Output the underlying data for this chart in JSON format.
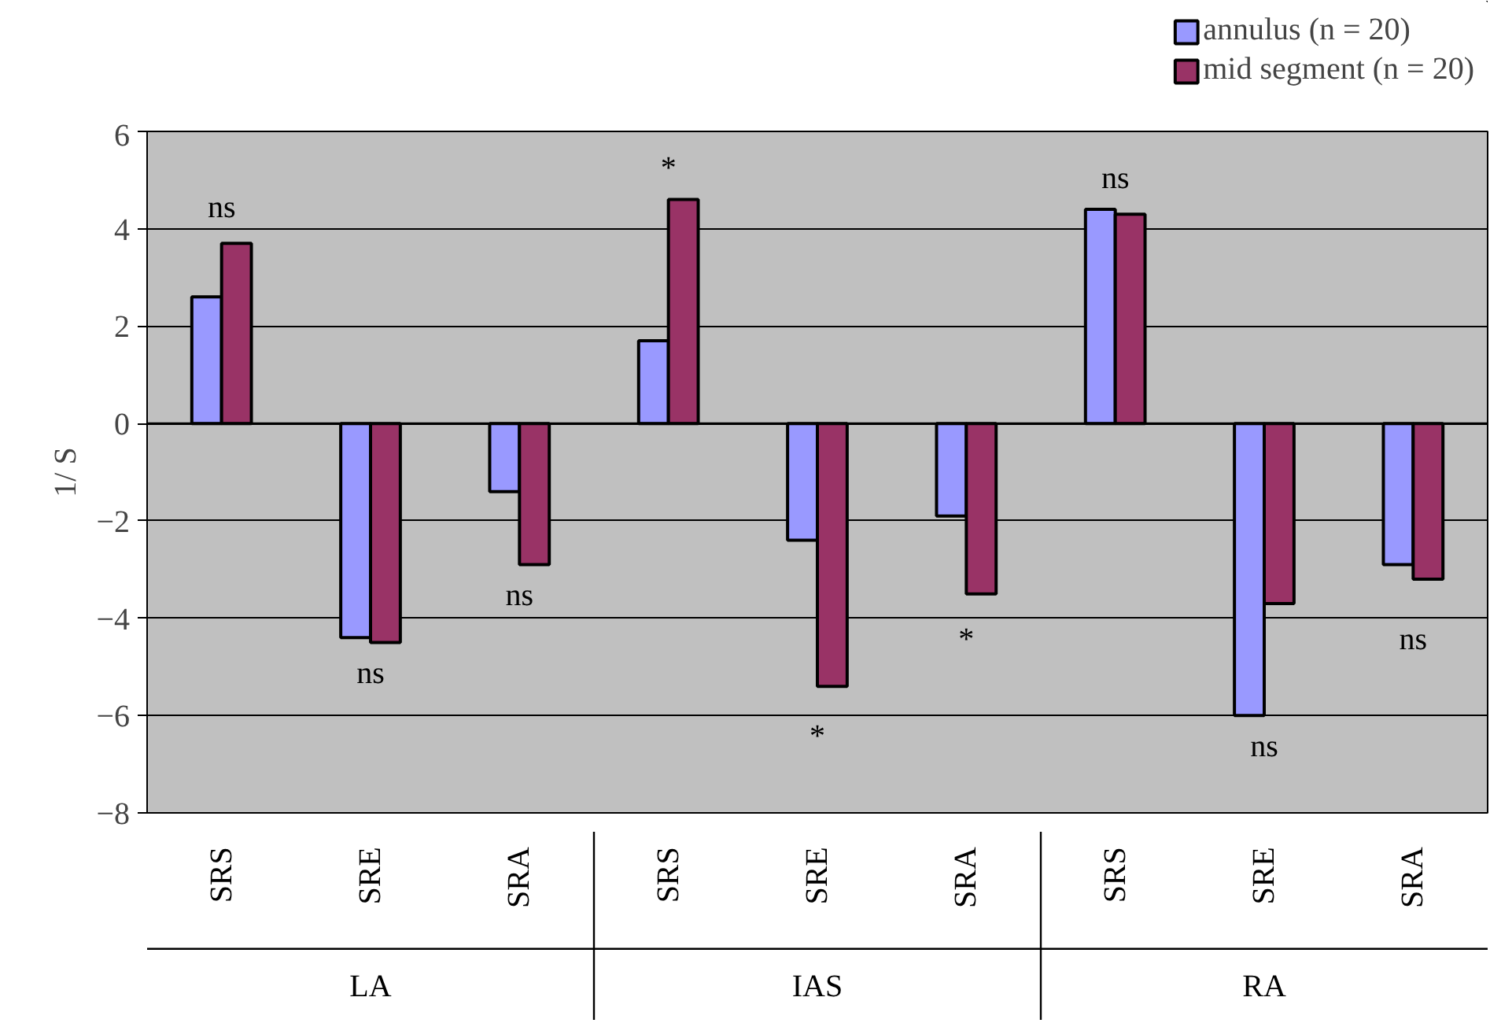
{
  "chart_data": {
    "type": "bar",
    "ylabel": "1/ S",
    "categories": [
      "SRS",
      "SRE",
      "SRA",
      "SRS",
      "SRE",
      "SRA",
      "SRS",
      "SRE",
      "SRA"
    ],
    "series": [
      {
        "name": "annulus (n = 20)",
        "color": "#9999ff",
        "values": [
          2.6,
          -4.4,
          -1.4,
          1.7,
          -2.4,
          -1.9,
          4.4,
          -6.0,
          -2.9
        ]
      },
      {
        "name": "mid segment (n = 20)",
        "color": "#993366",
        "values": [
          3.7,
          -4.5,
          -2.9,
          4.6,
          -5.4,
          -3.5,
          4.3,
          -3.7,
          -3.2
        ]
      }
    ],
    "ylim": [
      -8,
      6
    ],
    "yticks": [
      -8,
      -6,
      -4,
      -2,
      0,
      2,
      4,
      6
    ],
    "grid": "y",
    "legend": "top right",
    "annotations": [
      "ns",
      "ns",
      "ns",
      "*",
      "*",
      "*",
      "ns",
      "ns",
      "ns",
      "LA",
      "IAS",
      "RA"
    ]
  }
}
